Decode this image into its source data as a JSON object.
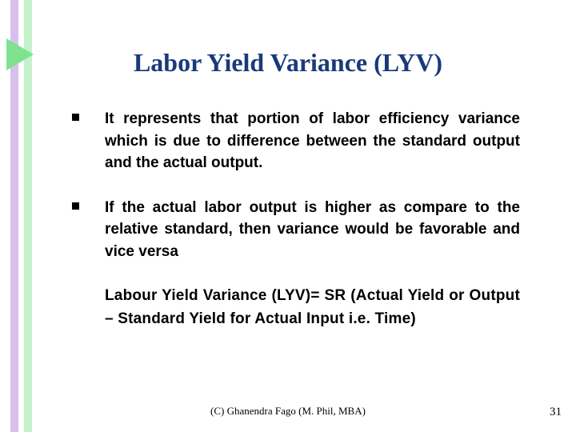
{
  "colors": {
    "title": "#193a7a",
    "bodyText": "#000000",
    "decoBarA": "#d7c0ee",
    "decoBarB": "#c4f2ca",
    "triangle": "#7fe28f",
    "bullet": "#000000",
    "footerText": "#000000",
    "slideNum": "#000000"
  },
  "title": "Labor Yield Variance (LYV)",
  "bullets": [
    "It represents that portion of labor efficiency variance which is due to difference between the standard output and the actual output.",
    "If the actual labor output is higher as compare to the relative standard, then variance would be favorable and vice versa"
  ],
  "formula": "Labour Yield Variance (LYV)= SR (Actual Yield or Output – Standard Yield for Actual Input i.e. Time)",
  "footer": "(C) Ghanendra Fago (M. Phil, MBA)",
  "slideNumber": "31",
  "typography": {
    "titleFont": "Times New Roman",
    "titleSize": 32,
    "bodyFont": "Arial",
    "bodySize": 19,
    "footerSize": 13
  }
}
